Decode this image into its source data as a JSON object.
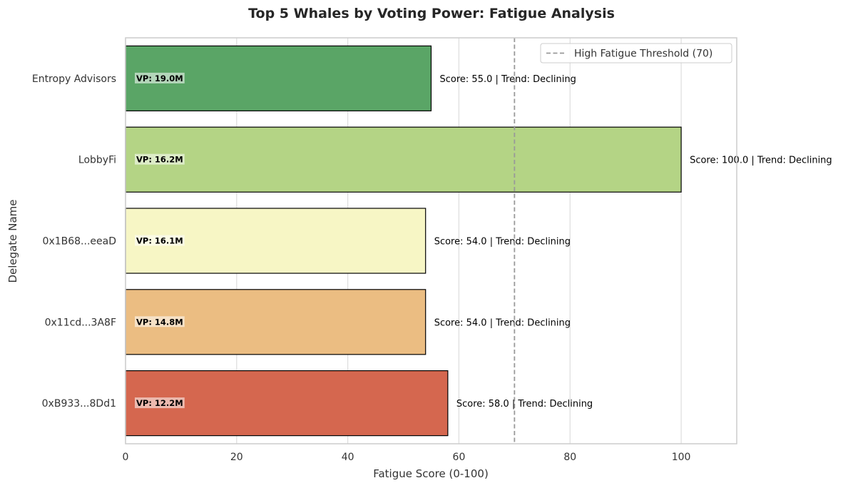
{
  "chart_data": {
    "type": "bar",
    "orientation": "horizontal",
    "title": "Top 5 Whales by Voting Power: Fatigue Analysis",
    "xlabel": "Fatigue Score (0-100)",
    "ylabel": "Delegate Name",
    "xlim": [
      0,
      110
    ],
    "xticks": [
      "0",
      "20",
      "40",
      "60",
      "80",
      "100"
    ],
    "grid": true,
    "legend_position": "top-right",
    "threshold": {
      "value": 70,
      "label": "High Fatigue Threshold (70)",
      "color": "#999999"
    },
    "bars": [
      {
        "category": "Entropy Advisors",
        "value": 55.0,
        "color": "#5aa566",
        "vp_label": "VP: 19.0M",
        "annotation": "Score: 55.0 | Trend: Declining"
      },
      {
        "category": "LobbyFi",
        "value": 100.0,
        "color": "#b4d485",
        "vp_label": "VP: 16.2M",
        "annotation": "Score: 100.0 | Trend: Declining"
      },
      {
        "category": "0x1B68...eeaD",
        "value": 54.0,
        "color": "#f7f6c5",
        "vp_label": "VP: 16.1M",
        "annotation": "Score: 54.0 | Trend: Declining"
      },
      {
        "category": "0x11cd...3A8F",
        "value": 54.0,
        "color": "#ebbd82",
        "vp_label": "VP: 14.8M",
        "annotation": "Score: 54.0 | Trend: Declining"
      },
      {
        "category": "0xB933...8Dd1",
        "value": 58.0,
        "color": "#d5674f",
        "vp_label": "VP: 12.2M",
        "annotation": "Score: 58.0 | Trend: Declining"
      }
    ]
  }
}
